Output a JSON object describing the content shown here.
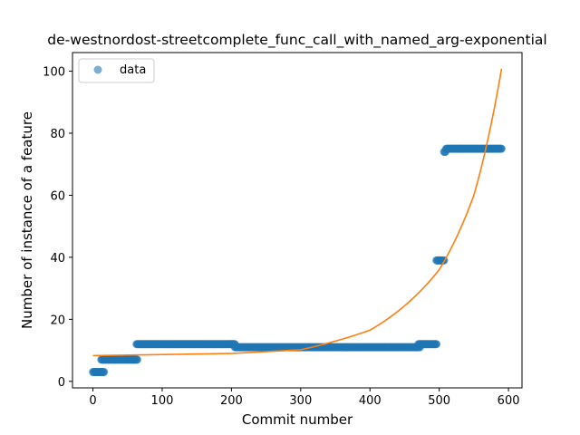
{
  "chart_data": {
    "type": "scatter",
    "title": "de-westnordost-streetcomplete_func_call_with_named_arg-exponential",
    "xlabel": "Commit number",
    "ylabel": "Number of instance of a feature",
    "xlim": [
      -29.5,
      619.5
    ],
    "ylim": [
      -2.1,
      106.0
    ],
    "xticks": [
      0,
      100,
      200,
      300,
      400,
      500,
      600
    ],
    "yticks": [
      0,
      20,
      40,
      60,
      80,
      100
    ],
    "grid": false,
    "legend": {
      "position": "top-left",
      "entries": [
        "data"
      ]
    },
    "colors": {
      "data": "#1f77b4",
      "fit": "#ff7f0e"
    },
    "data_segments": [
      {
        "x_start": 0,
        "x_end": 16,
        "y": 3
      },
      {
        "x_start": 12,
        "x_end": 64,
        "y": 7
      },
      {
        "x_start": 63,
        "x_end": 205,
        "y": 12
      },
      {
        "x_start": 205,
        "x_end": 472,
        "y": 11
      },
      {
        "x_start": 470,
        "x_end": 496,
        "y": 12
      },
      {
        "x_start": 496,
        "x_end": 507,
        "y": 39
      },
      {
        "x_start": 507,
        "x_end": 509,
        "y": 74
      },
      {
        "x_start": 510,
        "x_end": 590,
        "y": 75
      }
    ],
    "fit": {
      "model": "exponential",
      "x_range": [
        0,
        590
      ],
      "points": [
        {
          "x": 0,
          "y": 8.3
        },
        {
          "x": 200,
          "y": 9.0
        },
        {
          "x": 300,
          "y": 10.2
        },
        {
          "x": 400,
          "y": 16.5
        },
        {
          "x": 500,
          "y": 36.0
        },
        {
          "x": 550,
          "y": 60.0
        },
        {
          "x": 590,
          "y": 100.8
        }
      ]
    }
  }
}
